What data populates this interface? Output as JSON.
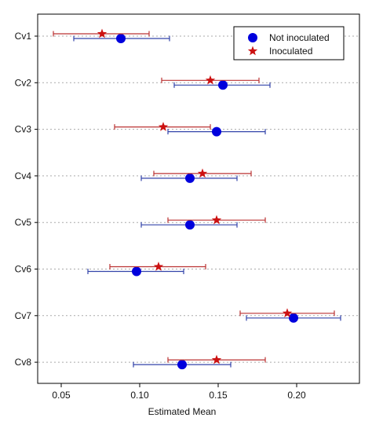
{
  "chart_data": {
    "type": "scatter",
    "categories": [
      "Cv1",
      "Cv2",
      "Cv3",
      "Cv4",
      "Cv5",
      "Cv6",
      "Cv7",
      "Cv8"
    ],
    "xlabel": "Estimated Mean",
    "ylabel": "",
    "xlim": [
      0.035,
      0.24
    ],
    "xticks": [
      0.05,
      0.1,
      0.15,
      0.2
    ],
    "xtick_labels": [
      "0.05",
      "0.10",
      "0.15",
      "0.20"
    ],
    "grid": "horizontal dotted",
    "legend_position": "top-right",
    "series": [
      {
        "name": "Not inoculated",
        "marker": "circle",
        "color": "#0000dd",
        "errorbar_color": "#3344aa",
        "values": [
          0.088,
          0.153,
          0.149,
          0.132,
          0.132,
          0.098,
          0.198,
          0.127
        ],
        "lower": [
          0.058,
          0.122,
          0.118,
          0.101,
          0.101,
          0.067,
          0.168,
          0.096
        ],
        "upper": [
          0.119,
          0.183,
          0.18,
          0.162,
          0.162,
          0.128,
          0.228,
          0.158
        ]
      },
      {
        "name": "Inoculated",
        "marker": "star",
        "color": "#cc1111",
        "errorbar_color": "#bb3333",
        "values": [
          0.076,
          0.145,
          0.115,
          0.14,
          0.149,
          0.112,
          0.194,
          0.149
        ],
        "lower": [
          0.045,
          0.114,
          0.084,
          0.109,
          0.118,
          0.081,
          0.164,
          0.118
        ],
        "upper": [
          0.106,
          0.176,
          0.145,
          0.171,
          0.18,
          0.142,
          0.224,
          0.18
        ]
      }
    ]
  }
}
